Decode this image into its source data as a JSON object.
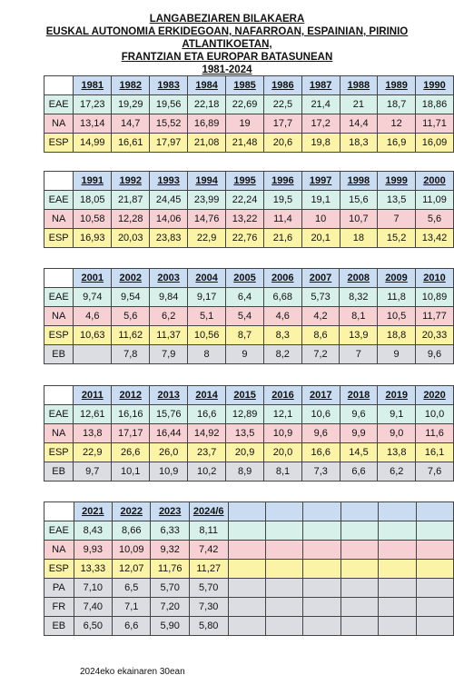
{
  "title": {
    "line1": "LANGABEZIAREN BILAKAERA",
    "line2": "EUSKAL AUTONOMIA ERKIDEGOAN, NAFARROAN, ESPAINIAN, PIRINIO ATLANTIKOETAN,",
    "line3": "FRANTZIAN ETA EUROPAR BATASUNEAN",
    "line4": "1981-2024"
  },
  "colors": {
    "header": "#c9dcf2",
    "EAE": "#d8f0ea",
    "NA": "#f6d0d3",
    "ESP": "#fbf3a6",
    "EB": "#dcdde3",
    "PA": "#dcdde3",
    "FR": "#dcdde3"
  },
  "tables": [
    {
      "years": [
        "1981",
        "1982",
        "1983",
        "1984",
        "1985",
        "1986",
        "1987",
        "1988",
        "1989",
        "1990"
      ],
      "rows": [
        {
          "label": "EAE",
          "values": [
            "17,23",
            "19,29",
            "19,56",
            "22,18",
            "22,69",
            "22,5",
            "21,4",
            "21",
            "18,7",
            "18,86"
          ]
        },
        {
          "label": "NA",
          "values": [
            "13,14",
            "14,7",
            "15,52",
            "16,89",
            "19",
            "17,7",
            "17,2",
            "14,4",
            "12",
            "11,71"
          ]
        },
        {
          "label": "ESP",
          "values": [
            "14,99",
            "16,61",
            "17,97",
            "21,08",
            "21,48",
            "20,6",
            "19,8",
            "18,3",
            "16,9",
            "16,09"
          ]
        }
      ]
    },
    {
      "years": [
        "1991",
        "1992",
        "1993",
        "1994",
        "1995",
        "1996",
        "1997",
        "1998",
        "1999",
        "2000"
      ],
      "rows": [
        {
          "label": "EAE",
          "values": [
            "18,05",
            "21,87",
            "24,45",
            "23,99",
            "22,24",
            "19,5",
            "19,1",
            "15,6",
            "13,5",
            "11,09"
          ]
        },
        {
          "label": "NA",
          "values": [
            "10,58",
            "12,28",
            "14,06",
            "14,76",
            "13,22",
            "11,4",
            "10",
            "10,7",
            "7",
            "5,6"
          ]
        },
        {
          "label": "ESP",
          "values": [
            "16,93",
            "20,03",
            "23,83",
            "22,9",
            "22,76",
            "21,6",
            "20,1",
            "18",
            "15,2",
            "13,42"
          ]
        }
      ]
    },
    {
      "years": [
        "2001",
        "2002",
        "2003",
        "2004",
        "2005",
        "2006",
        "2007",
        "2008",
        "2009",
        "2010"
      ],
      "rows": [
        {
          "label": "EAE",
          "values": [
            "9,74",
            "9,54",
            "9,84",
            "9,17",
            "6,4",
            "6,68",
            "5,73",
            "8,32",
            "11,8",
            "10,89"
          ]
        },
        {
          "label": "NA",
          "values": [
            "4,6",
            "5,6",
            "6,2",
            "5,1",
            "5,4",
            "4,6",
            "4,2",
            "8,1",
            "10,5",
            "11,77"
          ]
        },
        {
          "label": "ESP",
          "values": [
            "10,63",
            "11,62",
            "11,37",
            "10,56",
            "8,7",
            "8,3",
            "8,6",
            "13,9",
            "18,8",
            "20,33"
          ]
        },
        {
          "label": "EB",
          "values": [
            "",
            "7,8",
            "7,9",
            "8",
            "9",
            "8,2",
            "7,2",
            "7",
            "9",
            "9,6"
          ]
        }
      ]
    },
    {
      "years": [
        "2011",
        "2012",
        "2013",
        "2014",
        "2015",
        "2016",
        "2017",
        "2018",
        "2019",
        "2020"
      ],
      "rows": [
        {
          "label": "EAE",
          "values": [
            "12,61",
            "16,16",
            "15,76",
            "16,6",
            "12,89",
            "12,1",
            "10,6",
            "9,6",
            "9,1",
            "10,0"
          ]
        },
        {
          "label": "NA",
          "values": [
            "13,8",
            "17,17",
            "16,44",
            "14,92",
            "13,5",
            "10,9",
            "9,6",
            "9,9",
            "9,0",
            "11,6"
          ]
        },
        {
          "label": "ESP",
          "values": [
            "22,9",
            "26,6",
            "26,0",
            "23,7",
            "20,9",
            "20,0",
            "16,6",
            "14,5",
            "13,8",
            "16,1"
          ]
        },
        {
          "label": "EB",
          "values": [
            "9,7",
            "10,1",
            "10,9",
            "10,2",
            "8,9",
            "8,1",
            "7,3",
            "6,6",
            "6,2",
            "7,6"
          ]
        }
      ]
    },
    {
      "years": [
        "2021",
        "2022",
        "2023",
        "2024/6",
        "",
        "",
        "",
        "",
        "",
        ""
      ],
      "rows": [
        {
          "label": "EAE",
          "values": [
            "8,43",
            "8,66",
            "6,33",
            "8,11",
            "",
            "",
            "",
            "",
            "",
            ""
          ]
        },
        {
          "label": "NA",
          "values": [
            "9,93",
            "10,09",
            "9,32",
            "7,42",
            "",
            "",
            "",
            "",
            "",
            ""
          ]
        },
        {
          "label": "ESP",
          "values": [
            "13,33",
            "12,07",
            "11,76",
            "11,27",
            "",
            "",
            "",
            "",
            "",
            ""
          ]
        },
        {
          "label": "PA",
          "values": [
            "7,10",
            "6,5",
            "5,70",
            "5,70",
            "",
            "",
            "",
            "",
            "",
            ""
          ]
        },
        {
          "label": "FR",
          "values": [
            "7,40",
            "7,1",
            "7,20",
            "7,30",
            "",
            "",
            "",
            "",
            "",
            ""
          ]
        },
        {
          "label": "EB",
          "values": [
            "6,50",
            "6,6",
            "5,90",
            "5,80",
            "",
            "",
            "",
            "",
            "",
            ""
          ]
        }
      ]
    }
  ],
  "footer": "2024eko ekainaren 30ean"
}
